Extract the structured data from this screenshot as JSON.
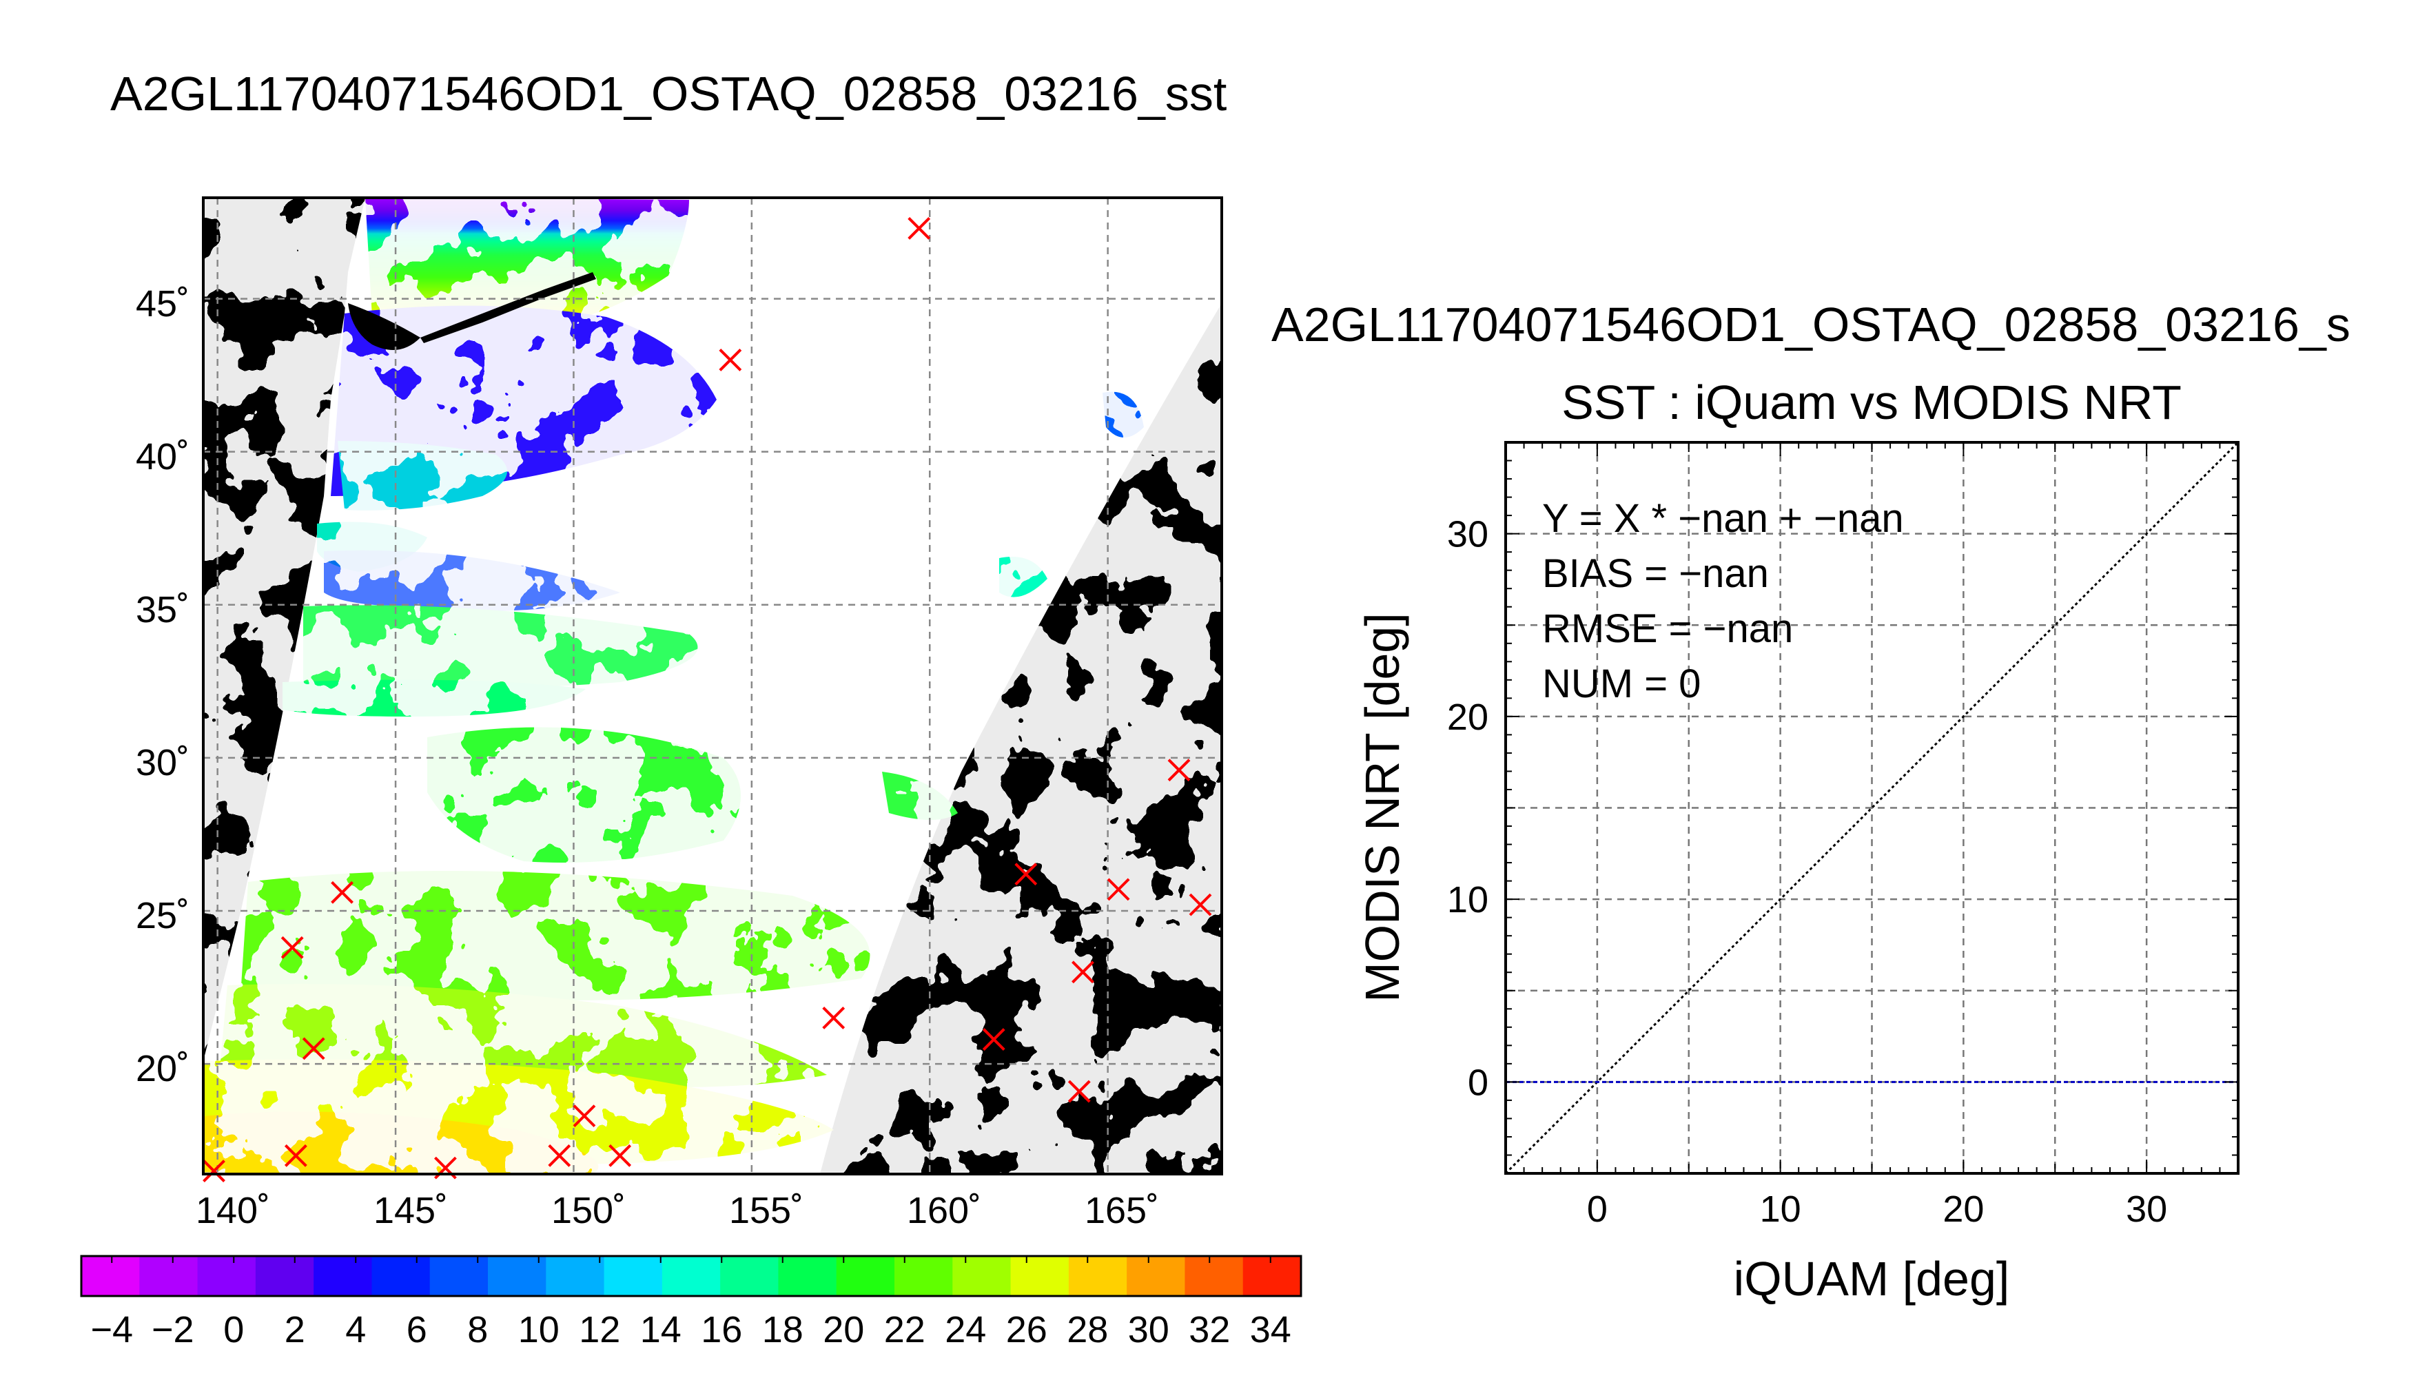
{
  "figure": {
    "map_title": "A2GL11704071546OD1_OSTAQ_02858_03216_sst",
    "scatter_title_1": "A2GL11704071546OD1_OSTAQ_02858_03216_s",
    "scatter_title_2": "SST : iQuam vs MODIS NRT"
  },
  "chart_data": [
    {
      "type": "heatmap",
      "title": "A2GL11704071546OD1_OSTAQ_02858_03216_sst",
      "xlabel": "",
      "ylabel": "",
      "x_ticks": [
        "140˚",
        "145˚",
        "150˚",
        "155˚",
        "160˚",
        "165˚"
      ],
      "x_tick_values": [
        140,
        145,
        150,
        155,
        160,
        165
      ],
      "y_ticks": [
        "45˚",
        "40˚",
        "35˚",
        "30˚",
        "25˚",
        "20˚"
      ],
      "y_tick_values": [
        45,
        40,
        35,
        30,
        25,
        20
      ],
      "xlim": [
        139.6,
        168.2
      ],
      "ylim": [
        16.4,
        48.3
      ],
      "grid": true,
      "colorbar": {
        "min": -5,
        "max": 35,
        "tick_labels": [
          "−4",
          "−2",
          "0",
          "2",
          "4",
          "6",
          "8",
          "10",
          "12",
          "14",
          "16",
          "18",
          "20",
          "22",
          "24",
          "26",
          "28",
          "30",
          "32",
          "34"
        ],
        "colors": [
          "#e100ff",
          "#b000ff",
          "#8c00ff",
          "#6000f0",
          "#2000ff",
          "#0020ff",
          "#0050ff",
          "#0080ff",
          "#00b0ff",
          "#00e0ff",
          "#00ffd0",
          "#00ff90",
          "#00ff50",
          "#20ff10",
          "#60ff00",
          "#a0ff00",
          "#e0ff00",
          "#ffd000",
          "#ffa000",
          "#ff6000",
          "#ff2000"
        ]
      },
      "matchup_points": [
        {
          "lon": 159.7,
          "lat": 47.3
        },
        {
          "lon": 154.4,
          "lat": 43.0
        },
        {
          "lon": 167.0,
          "lat": 29.6
        },
        {
          "lon": 162.7,
          "lat": 26.2
        },
        {
          "lon": 165.3,
          "lat": 25.7
        },
        {
          "lon": 167.6,
          "lat": 25.2
        },
        {
          "lon": 164.3,
          "lat": 23.0
        },
        {
          "lon": 157.3,
          "lat": 21.5
        },
        {
          "lon": 161.8,
          "lat": 20.8
        },
        {
          "lon": 164.2,
          "lat": 19.1
        },
        {
          "lon": 143.5,
          "lat": 25.6
        },
        {
          "lon": 142.1,
          "lat": 23.8
        },
        {
          "lon": 142.7,
          "lat": 20.5
        },
        {
          "lon": 150.3,
          "lat": 18.3
        },
        {
          "lon": 139.9,
          "lat": 16.5
        },
        {
          "lon": 142.2,
          "lat": 17.0
        },
        {
          "lon": 146.4,
          "lat": 16.6
        },
        {
          "lon": 149.6,
          "lat": 17.0
        },
        {
          "lon": 151.3,
          "lat": 17.0
        }
      ]
    },
    {
      "type": "scatter",
      "title": "SST : iQuam vs MODIS NRT",
      "xlabel": "iQUAM [deg]",
      "ylabel": "MODIS NRT [deg]",
      "xlim": [
        -5,
        35
      ],
      "ylim": [
        -5,
        35
      ],
      "x_ticks": [
        0,
        10,
        20,
        30
      ],
      "y_ticks": [
        0,
        10,
        20,
        30
      ],
      "grid": true,
      "series": [],
      "reference_lines": [
        {
          "kind": "identity",
          "style": "dotted",
          "color": "#000000"
        },
        {
          "kind": "horizontal",
          "y": 0,
          "style": "dashed",
          "color": "#0000c0"
        }
      ],
      "stats": [
        "Y = X * −nan + −nan",
        "BIAS = −nan",
        "RMSE = −nan",
        "NUM = 0"
      ]
    }
  ]
}
